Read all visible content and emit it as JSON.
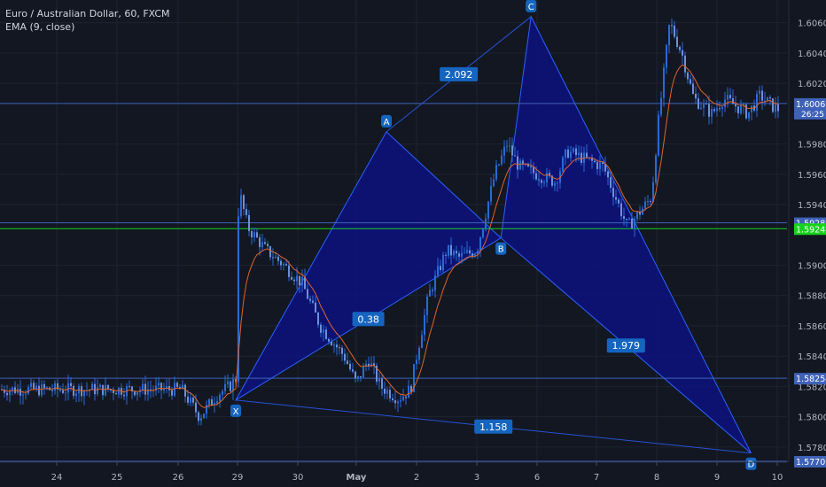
{
  "legend": {
    "symbol_line": "Euro / Australian Dollar, 60, FXCM",
    "indicator_line": "EMA (9, close)"
  },
  "colors": {
    "background": "#131722",
    "pattern_fill": "#0d127f",
    "pattern_line": "#2962ff",
    "horizontal_line": "#3f62b8",
    "green_line": "#17d11c",
    "candle": "#2a6ad4",
    "ema": "#e0642a",
    "axis_text": "#b2b5be",
    "label_bg": "#1565c0"
  },
  "chart_data": {
    "type": "line",
    "title": "Euro / Australian Dollar, 60, FXCM",
    "indicator": "EMA (9, close)",
    "ylim": [
      1.577,
      1.6075
    ],
    "x_ticks": [
      "24",
      "25",
      "26",
      "29",
      "30",
      "May",
      "2",
      "3",
      "6",
      "7",
      "8",
      "9",
      "10"
    ],
    "y_ticks": [
      "1.60600",
      "1.60400",
      "1.60200",
      "1.59800",
      "1.59600",
      "1.59400",
      "1.59000",
      "1.58800",
      "1.58600",
      "1.58400",
      "1.58200",
      "1.58000",
      "1.57800"
    ],
    "harmonic_points": [
      {
        "label": "X",
        "date": "29",
        "price": 1.5811
      },
      {
        "label": "A",
        "date": "May 1",
        "price": 1.5988
      },
      {
        "label": "B",
        "date": "3",
        "price": 1.5918
      },
      {
        "label": "C",
        "date": "6",
        "price": 1.6064
      },
      {
        "label": "D",
        "date": "10",
        "price": 1.5776
      }
    ],
    "ratios": [
      {
        "value": "2.092",
        "between": "A-C"
      },
      {
        "value": "0.38",
        "between": "X-B"
      },
      {
        "value": "1.979",
        "between": "B-D"
      },
      {
        "value": "1.158",
        "between": "X-D"
      }
    ],
    "horizontal_levels": [
      {
        "price": 1.60067,
        "label": "1.60067",
        "color": "#3f62b8",
        "sub": "26:25"
      },
      {
        "price": 1.5928,
        "label": "1.59280",
        "color": "#3f62b8"
      },
      {
        "price": 1.59241,
        "label": "1.59241",
        "color": "#17d11c"
      },
      {
        "price": 1.58254,
        "label": "1.58254",
        "color": "#3f62b8"
      },
      {
        "price": 1.57706,
        "label": "1.57706",
        "color": "#3f62b8"
      }
    ],
    "price_series": {
      "name": "EUR/AUD",
      "x_days": [
        -0.9,
        -0.6,
        -0.3,
        -0.1,
        0.0,
        0.05,
        0.2,
        0.5,
        0.8,
        1.1,
        1.4,
        1.8,
        2.0,
        2.2,
        2.4,
        2.7,
        2.9,
        3.0,
        3.2,
        3.5,
        3.7,
        4.0,
        4.3,
        4.5,
        4.7,
        5.0,
        5.3,
        5.5,
        5.8,
        6.1,
        6.3,
        6.5,
        6.9,
        7.0,
        7.2,
        7.4,
        7.6,
        7.9,
        8.0,
        8.1,
        8.3,
        8.5,
        8.7,
        8.9,
        9.0
      ],
      "close": [
        1.5818,
        1.58,
        1.5815,
        1.582,
        1.5825,
        1.595,
        1.5925,
        1.591,
        1.59,
        1.5888,
        1.586,
        1.584,
        1.5822,
        1.5838,
        1.582,
        1.5812,
        1.5818,
        1.584,
        1.588,
        1.591,
        1.5905,
        1.591,
        1.596,
        1.598,
        1.5965,
        1.596,
        1.5955,
        1.5975,
        1.597,
        1.5965,
        1.5945,
        1.5925,
        1.5945,
        1.599,
        1.606,
        1.604,
        1.601,
        1.6,
        1.6005,
        1.601,
        1.6005,
        1.6,
        1.6012,
        1.6005,
        1.6003
      ]
    }
  }
}
